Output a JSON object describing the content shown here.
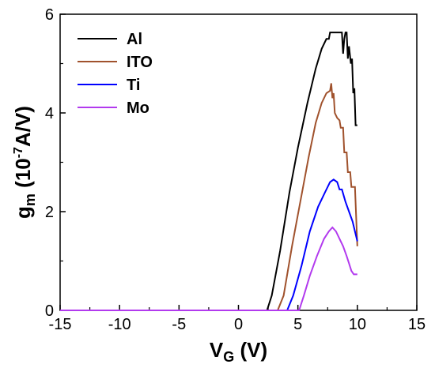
{
  "chart_data": {
    "type": "line",
    "xlim": [
      -15,
      15
    ],
    "ylim": [
      0,
      6
    ],
    "x_ticks": [
      -15,
      -10,
      -5,
      0,
      5,
      10,
      15
    ],
    "y_ticks": [
      0,
      2,
      4,
      6
    ],
    "xlabel": {
      "main": "V",
      "sub": "G",
      "rest": " (V)"
    },
    "ylabel": {
      "main": "g",
      "sub": "m",
      "rest": " (10",
      "sup": "-7",
      "rest2": "A/V)"
    },
    "legend_position": "top-left",
    "series": [
      {
        "name": "Al",
        "color": "#000000",
        "points": [
          [
            -15,
            0
          ],
          [
            2.4,
            0
          ],
          [
            2.8,
            0.3
          ],
          [
            3.5,
            1.2
          ],
          [
            4.3,
            2.4
          ],
          [
            5.0,
            3.3
          ],
          [
            5.8,
            4.2
          ],
          [
            6.5,
            4.9
          ],
          [
            7.0,
            5.3
          ],
          [
            7.4,
            5.5
          ],
          [
            7.6,
            5.5
          ],
          [
            7.7,
            5.63
          ],
          [
            8.7,
            5.63
          ],
          [
            8.8,
            5.2
          ],
          [
            8.9,
            5.5
          ],
          [
            9.0,
            5.63
          ],
          [
            9.1,
            5.63
          ],
          [
            9.2,
            5.1
          ],
          [
            9.3,
            5.35
          ],
          [
            9.45,
            5.0
          ],
          [
            9.55,
            5.1
          ],
          [
            9.65,
            4.4
          ],
          [
            9.75,
            4.5
          ],
          [
            9.85,
            3.75
          ],
          [
            10.0,
            3.75
          ]
        ]
      },
      {
        "name": "ITO",
        "color": "#a0522d",
        "points": [
          [
            -15,
            0
          ],
          [
            3.3,
            0
          ],
          [
            3.8,
            0.3
          ],
          [
            4.5,
            1.3
          ],
          [
            5.2,
            2.2
          ],
          [
            5.9,
            3.1
          ],
          [
            6.5,
            3.8
          ],
          [
            7.0,
            4.2
          ],
          [
            7.4,
            4.4
          ],
          [
            7.7,
            4.45
          ],
          [
            7.8,
            4.6
          ],
          [
            7.9,
            4.3
          ],
          [
            8.0,
            4.4
          ],
          [
            8.1,
            4.0
          ],
          [
            8.3,
            3.9
          ],
          [
            8.5,
            3.85
          ],
          [
            8.6,
            3.7
          ],
          [
            8.8,
            3.7
          ],
          [
            8.9,
            3.2
          ],
          [
            9.1,
            3.2
          ],
          [
            9.2,
            2.8
          ],
          [
            9.4,
            2.8
          ],
          [
            9.5,
            2.5
          ],
          [
            9.8,
            2.5
          ],
          [
            9.9,
            1.9
          ],
          [
            10.0,
            1.3
          ]
        ]
      },
      {
        "name": "Ti",
        "color": "#0000ff",
        "points": [
          [
            -15,
            0
          ],
          [
            4.1,
            0
          ],
          [
            4.6,
            0.3
          ],
          [
            5.3,
            0.9
          ],
          [
            6.0,
            1.6
          ],
          [
            6.7,
            2.1
          ],
          [
            7.3,
            2.4
          ],
          [
            7.7,
            2.6
          ],
          [
            8.0,
            2.65
          ],
          [
            8.3,
            2.6
          ],
          [
            8.5,
            2.45
          ],
          [
            8.7,
            2.45
          ],
          [
            9.0,
            2.2
          ],
          [
            9.3,
            2.0
          ],
          [
            9.6,
            1.8
          ],
          [
            9.8,
            1.6
          ],
          [
            10.0,
            1.4
          ]
        ]
      },
      {
        "name": "Mo",
        "color": "#b23aee",
        "points": [
          [
            -15,
            0
          ],
          [
            5.1,
            0
          ],
          [
            5.5,
            0.3
          ],
          [
            6.0,
            0.7
          ],
          [
            6.6,
            1.1
          ],
          [
            7.2,
            1.45
          ],
          [
            7.6,
            1.6
          ],
          [
            7.9,
            1.68
          ],
          [
            8.2,
            1.6
          ],
          [
            8.5,
            1.45
          ],
          [
            8.8,
            1.3
          ],
          [
            9.1,
            1.1
          ],
          [
            9.3,
            0.95
          ],
          [
            9.5,
            0.8
          ],
          [
            9.7,
            0.73
          ],
          [
            10.0,
            0.73
          ]
        ]
      }
    ]
  }
}
